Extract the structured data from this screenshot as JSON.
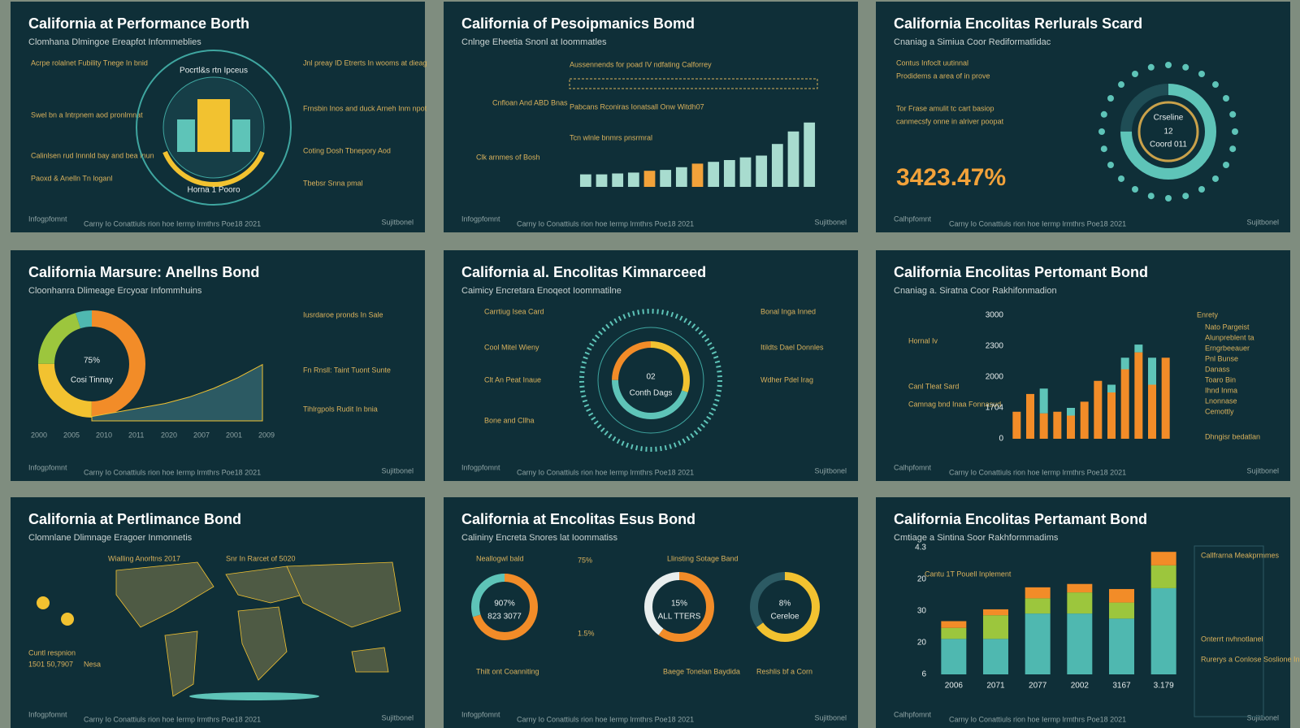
{
  "panels": [
    {
      "title": "California at Performance Borth",
      "subtitle": "Clomhana Dlmingoe Ereapfot Infommeblies",
      "footer_left": "Infogpfomnt",
      "footer_center": "Carny Io Conattiuls rion hoe Iermp lrmthrs Poe18 2021",
      "footer_right": "Sujitbonel",
      "notes": [
        "Acrpe rolalnet Fubility Tnege In bnid",
        "Swel bn a Intrpnem aod pronlmnat",
        "Calinlsen rud Innnld bay and bea fnun",
        "Paoxd & Anelln Tn loganl",
        "Jnl preay ID Etrerts In wooms at dieag",
        "Frnsbin Inos and duck Arneh Inm npot",
        "Coting Dosh Tbnepory Aod",
        "Tbebsr Snna pmal"
      ],
      "ring_text": "Pocrtl&s rtn Ipceus",
      "ring_text_bottom": "Horna 1 Pooro"
    },
    {
      "title": "California of Pesoipmanics Bomd",
      "subtitle": "Cnlnge Eheetia Snonl at Ioommatles",
      "footer_left": "Infogpfomnt",
      "footer_center": "Carny Io Conattiuls rion hoe Iermp lrmthrs Poe18 2021",
      "footer_right": "Sujitbonel",
      "notes": [
        "Cnfloan And ABD Bnas",
        "Aussennends for poad IV ndfating Calforrey",
        "Pabcans Rconiras Ionatsall Onw Witdh07",
        "Clk arnmes of Bosh",
        "Tcn wlnle bnmrs pnsrmral"
      ],
      "chart": {
        "type": "bar",
        "values": [
          14,
          14,
          15,
          16,
          18,
          19,
          22,
          26,
          28,
          30,
          33,
          35,
          48,
          62,
          72
        ],
        "colors": [
          "#a8dccf",
          "#a8dccf",
          "#a8dccf",
          "#a8dccf",
          "#f2a23a",
          "#a8dccf",
          "#a8dccf",
          "#f2a23a",
          "#a8dccf",
          "#a8dccf",
          "#a8dccf",
          "#a8dccf",
          "#a8dccf",
          "#a8dccf",
          "#a8dccf"
        ],
        "ylim": [
          0,
          80
        ]
      }
    },
    {
      "title": "California Encolitas Rerlurals Scard",
      "subtitle": "Cnaniag a Simiua Coor Rediformatlidac",
      "footer_left": "Calhpfomnt",
      "footer_center": "Carny Io Conattiuls rion hoe Iermp lrmthrs Poe18 2021",
      "footer_right": "Sujitbonel",
      "notes": [
        "Contus Infoclt uutinnal",
        "Tor Frase amulit tc cart basiop",
        "Prodidems a area of in prove",
        "canmecsfy onne in alriver poopat"
      ],
      "highlight": "3423.47%",
      "chart": {
        "type": "ring",
        "values": [
          75,
          25
        ],
        "colors": [
          "#5ec4b8",
          "#1f4d55"
        ],
        "center_title": "Crseline",
        "center_value": "12",
        "center_sub": "Coord 011"
      }
    },
    {
      "title": "California Marsure: Anellns Bond",
      "subtitle": "Cloonhanra Dlimeage Ercyoar Infommhuins",
      "footer_left": "Infogpfomnt",
      "footer_center": "Carny Io Conattiuls rion hoe Iermp lrmthrs Poe18 2021",
      "footer_right": "Sujitbonel",
      "notes": [
        "Iusrdaroe pronds In Sale",
        "Fn Rnsll: Taint Tuont Sunte",
        "Tihlrgpols Rudit In bnia"
      ],
      "chart": {
        "type": "donut",
        "values": [
          50,
          25,
          20,
          5
        ],
        "colors": [
          "#f28c28",
          "#f2c230",
          "#9cc63d",
          "#4fb8b0"
        ],
        "center_value": "75%",
        "center_sub": "Cosi Tinnay",
        "line": {
          "values": [
            4,
            8,
            12,
            16,
            22,
            30,
            40,
            52
          ],
          "color": "#2c5a63"
        },
        "ylim": [
          0,
          60
        ],
        "x_labels": [
          "2000",
          "2005",
          "2010",
          "2011",
          "2020",
          "2007",
          "2001",
          "2009"
        ]
      }
    },
    {
      "title": "California al. Encolitas Kimnarceed",
      "subtitle": "Caimicy Encretara Enoqeot Ioommatilne",
      "footer_left": "Infogpfomnt",
      "footer_center": "Carny Io Conattiuls rion hoe Iermp lrmthrs Poe18 2021",
      "footer_right": "Sujitbonel",
      "notes": [
        "Carrtiug Isea Card",
        "Cool Mitel Wieny",
        "Clt An Peat Inaue",
        "Bone and Cllha",
        "Bonal Inga Inned",
        "Itildts Dael Donnles",
        "Wdher Pdel Irag"
      ],
      "chart": {
        "type": "radial",
        "values": [
          30,
          45,
          25
        ],
        "colors": [
          "#f2c230",
          "#5ec4b8",
          "#f28c28"
        ],
        "center_value": "02",
        "center_sub": "Conth Dags"
      }
    },
    {
      "title": "California Encolitas Pertomant Bond",
      "subtitle": "Cnaniag a. Siratna Coor Rakhifonmadion",
      "footer_left": "Calhpfomnt",
      "footer_center": "Carny Io Conattiuls rion hoe Iermp lrmthrs Poe18 2021",
      "footer_right": "Sujitbonel",
      "notes": [
        "Hornal Iv",
        "Canl Tleat Sard",
        "Camnag bnd Inaa Fonnasud",
        "Enrety",
        "Nato Pargeist",
        "Alunpreblent ta",
        "Erngrbeeauer",
        "Pnl Bunse",
        "Danass",
        "Toaro Bin",
        "Ihnd Inma",
        "Lnonnase",
        "Cemottly",
        "Dhngisr bedatlan"
      ],
      "chart": {
        "type": "stacked",
        "categories": [
          null,
          null,
          null,
          null,
          null,
          null,
          null,
          null,
          null,
          null,
          null,
          null
        ],
        "ylim": [
          0,
          160
        ],
        "y_labels": [
          "3000",
          "2300",
          "2000",
          "1704",
          "0"
        ],
        "series": [
          {
            "color": "#f28c28",
            "values": [
              35,
              58,
              33,
              35,
              30,
              48,
              75,
              60,
              90,
              112,
              70,
              105
            ]
          },
          {
            "color": "#5ec4b8",
            "values": [
              0,
              0,
              32,
              0,
              10,
              0,
              0,
              10,
              15,
              10,
              35,
              0
            ]
          }
        ]
      }
    },
    {
      "title": "California at Pertlimance Bond",
      "subtitle": "Clomnlane Dlimnage Eragoer Inmonnetis",
      "footer_left": "Infogpfomnt",
      "footer_center": "Carny Io Conattiuls rion hoe Iermp lrmthrs Poe18 2021",
      "footer_right": "Sujitbonel",
      "notes": [
        "Wialling Anorltns 2017",
        "Snr In Rarcet of 5020",
        "Cuntl respnion",
        "1501 50,7907",
        "Nesa"
      ],
      "chart": {
        "type": "map"
      }
    },
    {
      "title": "California at Encolitas Esus Bond",
      "subtitle": "Calininy Encreta Snores lat Ioommatiss",
      "footer_left": "Infogpfomnt",
      "footer_center": "Carny Io Conattiuls rion hoe Iermp lrmthrs Poe18 2021",
      "footer_right": "Sujitbonel",
      "notes": [
        "Neallogwl bald",
        "75%",
        "1.5%",
        "Llinsting Sotage Band",
        "Thilt ont Coanniting",
        "Baege Tonelan Baydida",
        "Reshlis bf a Corn"
      ],
      "chart": {
        "type": "donuts",
        "items": [
          {
            "values": [
              70,
              30
            ],
            "colors": [
              "#f28c28",
              "#5ec4b8"
            ],
            "label": "907%",
            "sub": "823 3077"
          },
          {
            "values": [
              60,
              40
            ],
            "colors": [
              "#f28c28",
              "#e8eeee"
            ],
            "label": "15%",
            "sub": "ALL TTERS"
          },
          {
            "values": [
              65,
              35
            ],
            "colors": [
              "#f2c230",
              "#2c5a63"
            ],
            "label": "8%",
            "sub": "Cereloe"
          }
        ]
      }
    },
    {
      "title": "California Encolitas Pertamant Bond",
      "subtitle": "Cmtiage a Sintina Soor Rakhformmadims",
      "footer_left": "Calhpfomnt",
      "footer_center": "Carny Io Conattiuls rion hoe Iermp lrmthrs Poe18 2021",
      "footer_right": "Sujitbonel",
      "notes": [
        "Cantu 1T Pouell Inplement",
        "Callfrarna Meakprmmes",
        "Onterrt nvhnotlanel",
        "Rurerys a Conlose Soslione Inpgnts"
      ],
      "chart": {
        "type": "stacked",
        "categories": [
          "2006",
          "2071",
          "2077",
          "2002",
          "3167",
          "3.179"
        ],
        "ylim": [
          0,
          150
        ],
        "y_labels": [
          "4.3",
          "20",
          "30",
          "20",
          "6"
        ],
        "series": [
          {
            "color": "#4fb8b0",
            "values": [
              42,
              42,
              72,
              72,
              66,
              102
            ]
          },
          {
            "color": "#9cc63d",
            "values": [
              13,
              28,
              18,
              25,
              19,
              27
            ]
          },
          {
            "color": "#f28c28",
            "values": [
              8,
              7,
              13,
              10,
              16,
              16
            ]
          }
        ]
      }
    }
  ]
}
